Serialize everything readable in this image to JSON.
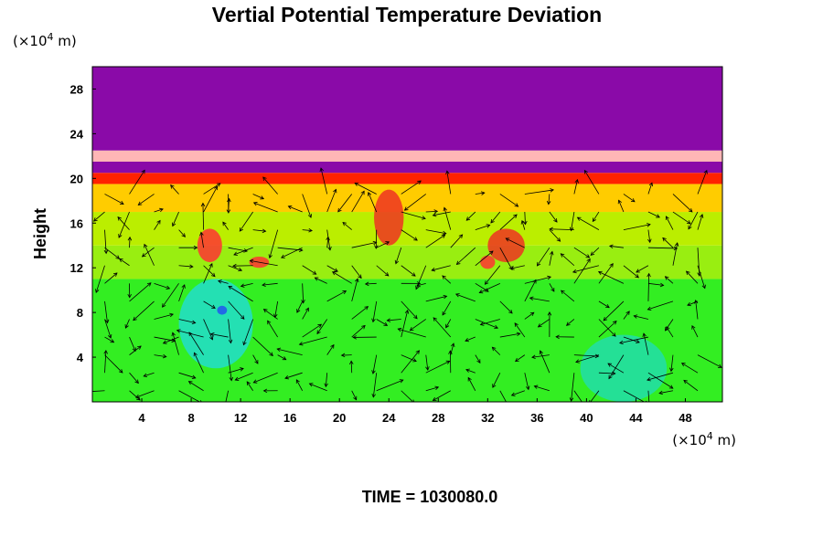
{
  "chart_data": {
    "type": "heatmap",
    "title": "Vertial Potential Temperature Deviation",
    "ylabel": "Height",
    "x_unit_prefix": "(×10",
    "x_unit_exp": "4",
    "x_unit_suffix": " m)",
    "y_unit_prefix": "(×10",
    "y_unit_exp": "4",
    "y_unit_suffix": " m)",
    "xlim": [
      0,
      51
    ],
    "ylim": [
      0,
      30
    ],
    "xticks": [
      4,
      8,
      12,
      16,
      20,
      24,
      28,
      32,
      36,
      40,
      44,
      48
    ],
    "xtick_labels": [
      "4",
      "8",
      "12",
      "16",
      "20",
      "24",
      "28",
      "32",
      "36",
      "40",
      "44",
      "48"
    ],
    "yticks": [
      4,
      8,
      12,
      16,
      20,
      24,
      28
    ],
    "ytick_labels": [
      "4",
      "8",
      "12",
      "16",
      "20",
      "24",
      "28"
    ],
    "field_bands": [
      {
        "from": 0,
        "to": 11,
        "color": "#33ee22"
      },
      {
        "from": 11,
        "to": 14,
        "color": "#99ee11"
      },
      {
        "from": 14,
        "to": 17,
        "color": "#bbee00"
      },
      {
        "from": 17,
        "to": 19.5,
        "color": "#ffcc00"
      },
      {
        "from": 19.5,
        "to": 20.5,
        "color": "#ff2200"
      },
      {
        "from": 20.5,
        "to": 21.5,
        "color": "#8a0aa8"
      },
      {
        "from": 21.5,
        "to": 22.5,
        "color": "#ffb6b6"
      },
      {
        "from": 22.5,
        "to": 30,
        "color": "#8a0aa8"
      }
    ],
    "features": [
      {
        "x": 10,
        "y": 7,
        "rx": 3,
        "ry": 4,
        "color": "#22ddcc"
      },
      {
        "x": 43,
        "y": 3,
        "rx": 3.5,
        "ry": 3,
        "color": "#22ddaa"
      },
      {
        "x": 10.5,
        "y": 8.2,
        "rx": 0.4,
        "ry": 0.4,
        "color": "#2255ee"
      },
      {
        "x": 24,
        "y": 16.5,
        "rx": 1.2,
        "ry": 2.5,
        "color": "#ee3322"
      },
      {
        "x": 33.5,
        "y": 14,
        "rx": 1.5,
        "ry": 1.5,
        "color": "#ee3322"
      },
      {
        "x": 9.5,
        "y": 14,
        "rx": 1,
        "ry": 1.5,
        "color": "#ff3333"
      },
      {
        "x": 13.5,
        "y": 12.5,
        "rx": 0.8,
        "ry": 0.5,
        "color": "#ff3333"
      },
      {
        "x": 32,
        "y": 12.5,
        "rx": 0.6,
        "ry": 0.6,
        "color": "#ff3333"
      }
    ],
    "vector_field": {
      "description": "wind vectors",
      "x_range": [
        1,
        50
      ],
      "y_range": [
        1,
        19
      ],
      "dx": 2,
      "dy": 1.6
    },
    "colors": {
      "purple": "#8a0aa8",
      "pink": "#ffb6b6",
      "red": "#ff2200",
      "yellow": "#ffcc00",
      "green": "#33ee22",
      "cyan": "#22ddcc",
      "blue": "#2255ee"
    }
  },
  "footer": {
    "time_label": "TIME = 1030080.0"
  }
}
